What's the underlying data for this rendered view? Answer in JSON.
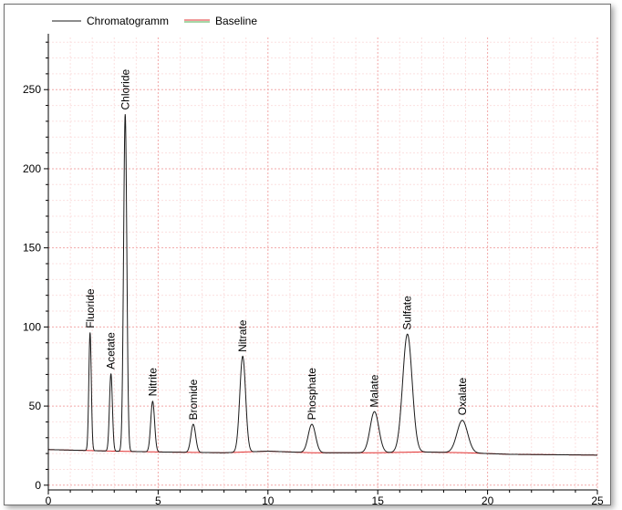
{
  "chart_data": {
    "type": "line",
    "title": "",
    "xlabel": "",
    "ylabel": "",
    "xlim": [
      0,
      25
    ],
    "ylim": [
      -3,
      283
    ],
    "x_ticks": [
      0,
      5,
      10,
      15,
      20,
      25
    ],
    "y_ticks": [
      0,
      50,
      100,
      150,
      200,
      250
    ],
    "grid": true,
    "legend_position": "top-left",
    "colors": {
      "chromatogram": "#1a1a1a",
      "baseline": "#e03030",
      "baseline_legend_secondary": "#4caf50",
      "grid_major": "#f2a9a9",
      "grid_minor": "#fbe0e0",
      "axis": "#000000"
    },
    "legend": [
      {
        "key": "chromatogram",
        "label": "Chromatogramm"
      },
      {
        "key": "baseline",
        "label": "Baseline"
      }
    ],
    "baseline_points": [
      [
        0,
        22.5
      ],
      [
        1.5,
        22
      ],
      [
        3,
        21.5
      ],
      [
        5,
        21.0
      ],
      [
        8,
        20.5
      ],
      [
        10,
        21.5
      ],
      [
        12,
        20.5
      ],
      [
        15,
        20.5
      ],
      [
        17,
        21.0
      ],
      [
        19,
        20.5
      ],
      [
        21,
        19.5
      ],
      [
        25,
        19.0
      ]
    ],
    "peaks": [
      {
        "name": "Fluoride",
        "rt": 1.9,
        "height": 96.5,
        "label_y": 98
      },
      {
        "name": "Acetate",
        "rt": 2.85,
        "height": 70.5,
        "label_y": 72
      },
      {
        "name": "Chloride",
        "rt": 3.5,
        "height": 234.5,
        "label_y": 236
      },
      {
        "name": "Nitrite",
        "rt": 4.75,
        "height": 53.0,
        "label_y": 55
      },
      {
        "name": "Bromide",
        "rt": 6.6,
        "height": 38.5,
        "label_y": 40
      },
      {
        "name": "Nitrate",
        "rt": 8.85,
        "height": 81.5,
        "label_y": 83
      },
      {
        "name": "Phosphate",
        "rt": 12.0,
        "height": 38.5,
        "label_y": 40
      },
      {
        "name": "Malate",
        "rt": 14.85,
        "height": 46.5,
        "label_y": 48
      },
      {
        "name": "Sulfate",
        "rt": 16.35,
        "height": 95.5,
        "label_y": 97
      },
      {
        "name": "Oxalate",
        "rt": 18.85,
        "height": 41.0,
        "label_y": 43
      }
    ]
  }
}
